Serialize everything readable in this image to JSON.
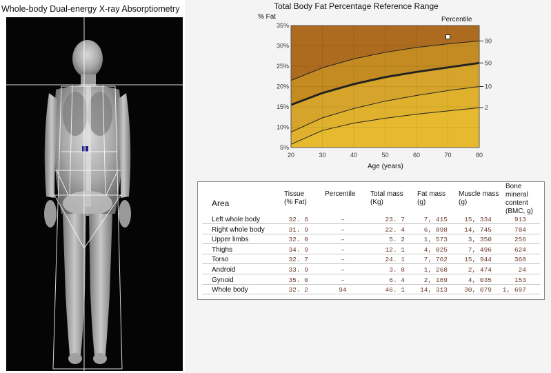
{
  "left_panel": {
    "title": "Whole-body Dual-energy X-ray Absorptiometry"
  },
  "chart_data": {
    "type": "line",
    "title": "Total Body Fat Percentage Reference Range",
    "ylabel": "% Fat",
    "xlabel": "Age (years)",
    "percentile_label": "Percentile",
    "x_ticks": [
      "20",
      "30",
      "40",
      "50",
      "60",
      "70",
      "80"
    ],
    "y_ticks": [
      "5%",
      "10%",
      "15%",
      "20%",
      "25%",
      "30%",
      "35%"
    ],
    "xlim": [
      20,
      80
    ],
    "ylim": [
      5,
      35
    ],
    "series": [
      {
        "name": "90",
        "x": [
          20,
          30,
          40,
          50,
          60,
          70,
          80
        ],
        "y": [
          21.5,
          24.6,
          26.8,
          28.4,
          29.6,
          30.5,
          31.2
        ]
      },
      {
        "name": "50",
        "x": [
          20,
          30,
          40,
          50,
          60,
          70,
          80
        ],
        "y": [
          15.5,
          18.4,
          20.6,
          22.3,
          23.6,
          24.7,
          25.8
        ]
      },
      {
        "name": "10",
        "x": [
          20,
          30,
          40,
          50,
          60,
          70,
          80
        ],
        "y": [
          8.8,
          12.3,
          14.6,
          16.4,
          17.8,
          19.0,
          20.0
        ]
      },
      {
        "name": "2",
        "x": [
          20,
          30,
          40,
          50,
          60,
          70,
          80
        ],
        "y": [
          5.8,
          9.2,
          11.0,
          12.2,
          13.2,
          14.0,
          14.8
        ]
      }
    ],
    "marker": {
      "x": 70,
      "y": 32.2
    },
    "colors": {
      "top": "#ac6b1e",
      "mid_upper": "#c38b22",
      "mid_lower": "#d6a42a",
      "bottom": "#e6b92e",
      "line": "#222222"
    }
  },
  "table": {
    "headers": {
      "area": "Area",
      "tissue": [
        "Tissue",
        "(% Fat)"
      ],
      "percentile": [
        "Percentile"
      ],
      "total_mass": [
        "Total mass",
        "(Kg)"
      ],
      "fat_mass": [
        "Fat mass",
        "(g)"
      ],
      "muscle_mass": [
        "Muscle mass",
        "(g)"
      ],
      "bmc": [
        "Bone mineral",
        "content",
        "(BMC, g)"
      ]
    },
    "rows": [
      {
        "area": "Left whole body",
        "tissue": "32. 6",
        "percentile": "–",
        "total": "23. 7",
        "fat": "7, 415",
        "muscle": "15, 334",
        "bmc": "913"
      },
      {
        "area": "Right whole body",
        "tissue": "31. 9",
        "percentile": "–",
        "total": "22. 4",
        "fat": "6, 898",
        "muscle": "14, 745",
        "bmc": "784"
      },
      {
        "area": "Upper limbs",
        "tissue": "32. 0",
        "percentile": "–",
        "total": "5. 2",
        "fat": "1, 573",
        "muscle": "3, 350",
        "bmc": "256"
      },
      {
        "area": "Thighs",
        "tissue": "34. 9",
        "percentile": "–",
        "total": "12. 1",
        "fat": "4, 025",
        "muscle": "7, 496",
        "bmc": "624"
      },
      {
        "area": "Torso",
        "tissue": "32. 7",
        "percentile": "–",
        "total": "24. 1",
        "fat": "7, 762",
        "muscle": "15, 944",
        "bmc": "368"
      },
      {
        "area": "Android",
        "tissue": "33. 9",
        "percentile": "–",
        "total": "3. 8",
        "fat": "1, 268",
        "muscle": "2, 474",
        "bmc": "24"
      },
      {
        "area": "Gynoid",
        "tissue": "35. 0",
        "percentile": "–",
        "total": "6. 4",
        "fat": "2, 169",
        "muscle": "4, 035",
        "bmc": "153"
      },
      {
        "area": "Whole body",
        "tissue": "32. 2",
        "percentile": "94",
        "total": "46. 1",
        "fat": "14, 313",
        "muscle": "30, 079",
        "bmc": "1, 697"
      }
    ]
  }
}
